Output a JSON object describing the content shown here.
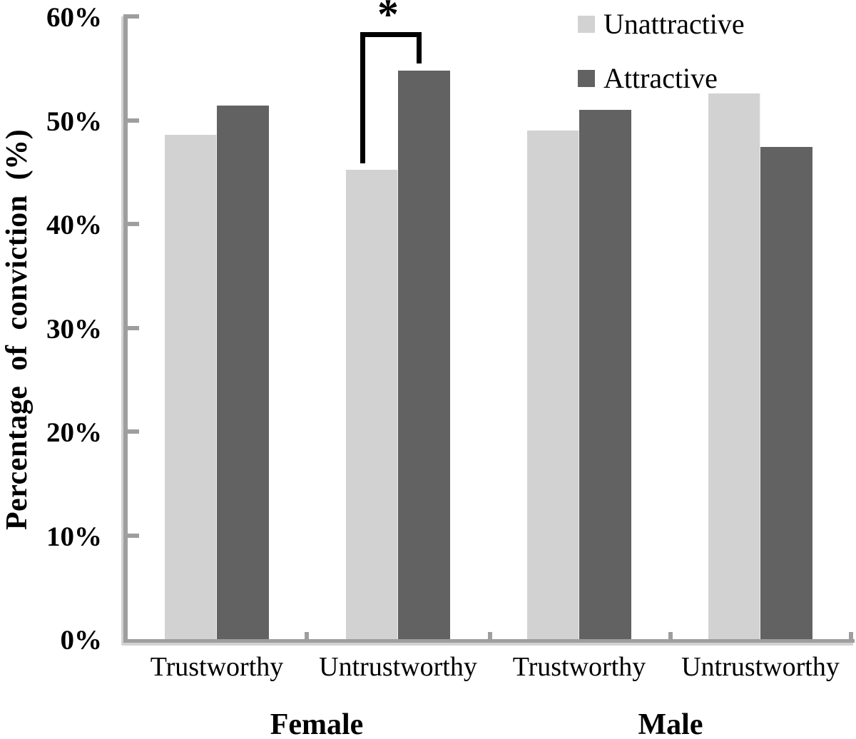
{
  "colors": {
    "unattractive_bar": "#d2d2d2",
    "attractive_bar": "#626262",
    "axis": "#9e9e9e",
    "text": "#000000",
    "annotation": "#000000"
  },
  "chart_data": {
    "type": "bar",
    "title": "",
    "ylabel": "Percentage of conviction (%)",
    "xlabel": "",
    "ylim": [
      0,
      60
    ],
    "ytick_step": 10,
    "y_tick_labels": [
      "0%",
      "10%",
      "20%",
      "30%",
      "40%",
      "50%",
      "60%"
    ],
    "grid": false,
    "legend_position": "top-right",
    "categories": [
      "Trustworthy",
      "Untrustworthy",
      "Trustworthy",
      "Untrustworthy"
    ],
    "group_labels": [
      "Female",
      "Male"
    ],
    "category_groups": [
      "Female",
      "Female",
      "Male",
      "Male"
    ],
    "series": [
      {
        "name": "Unattractive",
        "color": "#d2d2d2",
        "values": [
          48.6,
          45.2,
          49.0,
          52.6
        ]
      },
      {
        "name": "Attractive",
        "color": "#626262",
        "values": [
          51.4,
          54.8,
          51.0,
          47.4
        ]
      }
    ],
    "annotation": {
      "symbol": "*",
      "group": "Female",
      "category": "Untrustworthy",
      "compares": [
        "Unattractive",
        "Attractive"
      ]
    }
  }
}
